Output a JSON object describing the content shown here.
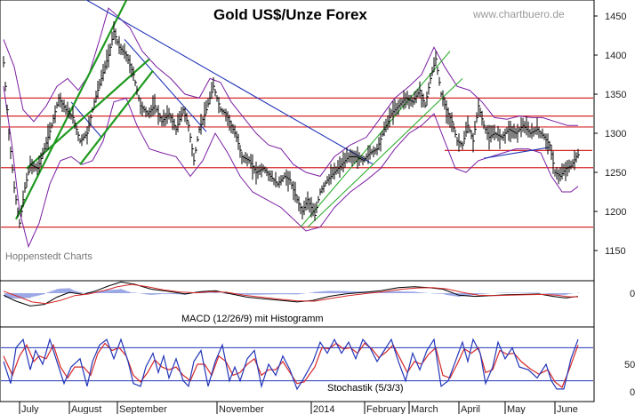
{
  "title": "Gold US$/Unze Forex",
  "watermark": "www.chartbuero.de",
  "source_label": "Hoppenstedt Charts",
  "macd_label": "MACD (12/26/9) mit Histogramm",
  "stoch_label": "Stochastik (5/3/3)",
  "colors": {
    "price": "#000000",
    "bollinger": "#7b1fa2",
    "support": "#d62828",
    "trend_down": "#2336b8",
    "trend_up_thick": "#1f9a1f",
    "trend_up_thin": "#2fae2f",
    "macd_signal": "#d62828",
    "histogram": "#5a6fd6",
    "stoch_k": "#2336b8",
    "stoch_d": "#d62828"
  },
  "chart_data": {
    "type": "candlestick",
    "x_months": [
      "July",
      "August",
      "September",
      "November",
      "2014",
      "February",
      "March",
      "April",
      "May",
      "June"
    ],
    "price_axis": {
      "ticks": [
        1150,
        1200,
        1250,
        1300,
        1350,
        1400,
        1450
      ],
      "ylim": [
        1130,
        1470
      ]
    },
    "macd_axis": {
      "ticks": [
        0
      ]
    },
    "stoch_axis": {
      "ticks": [
        0,
        50
      ]
    },
    "horizontal_levels": [
      1345,
      1322,
      1308,
      1256,
      1180
    ],
    "price_path": [
      [
        0,
        1390
      ],
      [
        6,
        1300
      ],
      [
        12,
        1230
      ],
      [
        18,
        1185
      ],
      [
        24,
        1230
      ],
      [
        30,
        1260
      ],
      [
        38,
        1255
      ],
      [
        46,
        1280
      ],
      [
        54,
        1310
      ],
      [
        62,
        1345
      ],
      [
        70,
        1330
      ],
      [
        78,
        1320
      ],
      [
        86,
        1290
      ],
      [
        94,
        1300
      ],
      [
        102,
        1340
      ],
      [
        110,
        1370
      ],
      [
        118,
        1400
      ],
      [
        124,
        1430
      ],
      [
        130,
        1410
      ],
      [
        138,
        1400
      ],
      [
        146,
        1375
      ],
      [
        154,
        1335
      ],
      [
        162,
        1325
      ],
      [
        170,
        1335
      ],
      [
        178,
        1315
      ],
      [
        186,
        1325
      ],
      [
        194,
        1305
      ],
      [
        202,
        1330
      ],
      [
        208,
        1310
      ],
      [
        214,
        1265
      ],
      [
        220,
        1305
      ],
      [
        228,
        1330
      ],
      [
        236,
        1360
      ],
      [
        244,
        1330
      ],
      [
        250,
        1325
      ],
      [
        256,
        1310
      ],
      [
        262,
        1295
      ],
      [
        268,
        1270
      ],
      [
        276,
        1265
      ],
      [
        284,
        1250
      ],
      [
        292,
        1255
      ],
      [
        300,
        1245
      ],
      [
        308,
        1235
      ],
      [
        316,
        1245
      ],
      [
        322,
        1240
      ],
      [
        330,
        1215
      ],
      [
        336,
        1200
      ],
      [
        342,
        1215
      ],
      [
        350,
        1195
      ],
      [
        356,
        1225
      ],
      [
        364,
        1240
      ],
      [
        372,
        1250
      ],
      [
        380,
        1260
      ],
      [
        388,
        1270
      ],
      [
        396,
        1270
      ],
      [
        404,
        1265
      ],
      [
        412,
        1275
      ],
      [
        420,
        1280
      ],
      [
        428,
        1305
      ],
      [
        436,
        1325
      ],
      [
        444,
        1335
      ],
      [
        452,
        1345
      ],
      [
        460,
        1340
      ],
      [
        468,
        1355
      ],
      [
        474,
        1335
      ],
      [
        480,
        1370
      ],
      [
        486,
        1395
      ],
      [
        492,
        1350
      ],
      [
        498,
        1330
      ],
      [
        504,
        1315
      ],
      [
        510,
        1290
      ],
      [
        516,
        1285
      ],
      [
        522,
        1310
      ],
      [
        528,
        1290
      ],
      [
        534,
        1335
      ],
      [
        540,
        1310
      ],
      [
        546,
        1295
      ],
      [
        552,
        1300
      ],
      [
        560,
        1295
      ],
      [
        568,
        1305
      ],
      [
        576,
        1300
      ],
      [
        584,
        1310
      ],
      [
        592,
        1300
      ],
      [
        600,
        1305
      ],
      [
        608,
        1295
      ],
      [
        614,
        1285
      ],
      [
        620,
        1250
      ],
      [
        626,
        1245
      ],
      [
        632,
        1255
      ],
      [
        638,
        1258
      ],
      [
        644,
        1270
      ],
      [
        648,
        1275
      ]
    ],
    "bollinger_upper": [
      [
        0,
        1420
      ],
      [
        12,
        1385
      ],
      [
        22,
        1330
      ],
      [
        34,
        1315
      ],
      [
        48,
        1335
      ],
      [
        60,
        1360
      ],
      [
        72,
        1370
      ],
      [
        84,
        1355
      ],
      [
        96,
        1375
      ],
      [
        108,
        1420
      ],
      [
        118,
        1460
      ],
      [
        128,
        1450
      ],
      [
        142,
        1435
      ],
      [
        156,
        1405
      ],
      [
        172,
        1385
      ],
      [
        188,
        1370
      ],
      [
        204,
        1350
      ],
      [
        220,
        1345
      ],
      [
        232,
        1370
      ],
      [
        244,
        1365
      ],
      [
        256,
        1340
      ],
      [
        270,
        1320
      ],
      [
        284,
        1300
      ],
      [
        298,
        1285
      ],
      [
        312,
        1280
      ],
      [
        326,
        1260
      ],
      [
        340,
        1250
      ],
      [
        356,
        1245
      ],
      [
        372,
        1270
      ],
      [
        390,
        1285
      ],
      [
        408,
        1295
      ],
      [
        424,
        1320
      ],
      [
        440,
        1345
      ],
      [
        456,
        1360
      ],
      [
        470,
        1375
      ],
      [
        484,
        1410
      ],
      [
        496,
        1385
      ],
      [
        510,
        1360
      ],
      [
        524,
        1355
      ],
      [
        538,
        1340
      ],
      [
        552,
        1320
      ],
      [
        566,
        1318
      ],
      [
        580,
        1322
      ],
      [
        594,
        1320
      ],
      [
        606,
        1320
      ],
      [
        620,
        1315
      ],
      [
        634,
        1310
      ],
      [
        646,
        1310
      ]
    ],
    "bollinger_lower": [
      [
        0,
        1360
      ],
      [
        10,
        1280
      ],
      [
        18,
        1200
      ],
      [
        28,
        1155
      ],
      [
        40,
        1185
      ],
      [
        52,
        1235
      ],
      [
        64,
        1265
      ],
      [
        76,
        1270
      ],
      [
        88,
        1260
      ],
      [
        100,
        1265
      ],
      [
        112,
        1290
      ],
      [
        124,
        1340
      ],
      [
        138,
        1345
      ],
      [
        150,
        1310
      ],
      [
        164,
        1280
      ],
      [
        178,
        1275
      ],
      [
        194,
        1270
      ],
      [
        210,
        1245
      ],
      [
        224,
        1265
      ],
      [
        238,
        1300
      ],
      [
        252,
        1275
      ],
      [
        266,
        1245
      ],
      [
        280,
        1225
      ],
      [
        296,
        1215
      ],
      [
        312,
        1205
      ],
      [
        326,
        1190
      ],
      [
        340,
        1175
      ],
      [
        356,
        1180
      ],
      [
        372,
        1205
      ],
      [
        390,
        1225
      ],
      [
        408,
        1240
      ],
      [
        424,
        1255
      ],
      [
        440,
        1280
      ],
      [
        456,
        1300
      ],
      [
        470,
        1310
      ],
      [
        484,
        1325
      ],
      [
        496,
        1290
      ],
      [
        508,
        1255
      ],
      [
        520,
        1250
      ],
      [
        534,
        1265
      ],
      [
        548,
        1270
      ],
      [
        562,
        1275
      ],
      [
        576,
        1280
      ],
      [
        590,
        1280
      ],
      [
        604,
        1275
      ],
      [
        616,
        1245
      ],
      [
        628,
        1225
      ],
      [
        638,
        1225
      ],
      [
        646,
        1232
      ]
    ],
    "macd": [
      [
        0,
        -5
      ],
      [
        14,
        -20
      ],
      [
        30,
        -32
      ],
      [
        46,
        -28
      ],
      [
        60,
        -10
      ],
      [
        74,
        2
      ],
      [
        90,
        -3
      ],
      [
        104,
        6
      ],
      [
        118,
        18
      ],
      [
        132,
        28
      ],
      [
        148,
        22
      ],
      [
        166,
        10
      ],
      [
        184,
        5
      ],
      [
        204,
        -2
      ],
      [
        222,
        4
      ],
      [
        238,
        6
      ],
      [
        256,
        -2
      ],
      [
        274,
        -10
      ],
      [
        292,
        -14
      ],
      [
        312,
        -18
      ],
      [
        330,
        -22
      ],
      [
        348,
        -18
      ],
      [
        366,
        -8
      ],
      [
        384,
        -2
      ],
      [
        404,
        2
      ],
      [
        424,
        6
      ],
      [
        444,
        14
      ],
      [
        462,
        16
      ],
      [
        478,
        14
      ],
      [
        494,
        10
      ],
      [
        512,
        -5
      ],
      [
        530,
        -8
      ],
      [
        548,
        -6
      ],
      [
        566,
        -4
      ],
      [
        584,
        -3
      ],
      [
        602,
        -2
      ],
      [
        618,
        -8
      ],
      [
        632,
        -12
      ],
      [
        646,
        -8
      ]
    ],
    "macd_signal": [
      [
        0,
        5
      ],
      [
        16,
        -8
      ],
      [
        32,
        -22
      ],
      [
        48,
        -26
      ],
      [
        64,
        -18
      ],
      [
        80,
        -6
      ],
      [
        96,
        -2
      ],
      [
        112,
        6
      ],
      [
        128,
        16
      ],
      [
        144,
        22
      ],
      [
        162,
        16
      ],
      [
        180,
        8
      ],
      [
        198,
        3
      ],
      [
        216,
        1
      ],
      [
        234,
        4
      ],
      [
        252,
        2
      ],
      [
        270,
        -5
      ],
      [
        290,
        -10
      ],
      [
        310,
        -15
      ],
      [
        330,
        -19
      ],
      [
        350,
        -20
      ],
      [
        368,
        -13
      ],
      [
        388,
        -6
      ],
      [
        408,
        -1
      ],
      [
        428,
        4
      ],
      [
        448,
        10
      ],
      [
        466,
        13
      ],
      [
        482,
        14
      ],
      [
        498,
        11
      ],
      [
        516,
        2
      ],
      [
        534,
        -5
      ],
      [
        552,
        -6
      ],
      [
        570,
        -5
      ],
      [
        588,
        -4
      ],
      [
        606,
        -3
      ],
      [
        622,
        -5
      ],
      [
        636,
        -9
      ],
      [
        646,
        -9
      ]
    ],
    "stoch_k": [
      [
        0,
        55
      ],
      [
        8,
        15
      ],
      [
        14,
        80
      ],
      [
        22,
        95
      ],
      [
        30,
        40
      ],
      [
        36,
        75
      ],
      [
        44,
        50
      ],
      [
        52,
        95
      ],
      [
        60,
        55
      ],
      [
        68,
        15
      ],
      [
        76,
        45
      ],
      [
        86,
        60
      ],
      [
        94,
        10
      ],
      [
        100,
        55
      ],
      [
        108,
        85
      ],
      [
        116,
        95
      ],
      [
        124,
        60
      ],
      [
        132,
        95
      ],
      [
        140,
        55
      ],
      [
        146,
        15
      ],
      [
        154,
        10
      ],
      [
        160,
        45
      ],
      [
        168,
        70
      ],
      [
        174,
        35
      ],
      [
        180,
        65
      ],
      [
        186,
        25
      ],
      [
        194,
        60
      ],
      [
        202,
        20
      ],
      [
        208,
        10
      ],
      [
        214,
        55
      ],
      [
        222,
        75
      ],
      [
        230,
        10
      ],
      [
        238,
        55
      ],
      [
        246,
        85
      ],
      [
        254,
        20
      ],
      [
        260,
        45
      ],
      [
        266,
        20
      ],
      [
        274,
        60
      ],
      [
        282,
        75
      ],
      [
        290,
        10
      ],
      [
        298,
        50
      ],
      [
        306,
        30
      ],
      [
        314,
        65
      ],
      [
        322,
        40
      ],
      [
        330,
        5
      ],
      [
        336,
        20
      ],
      [
        348,
        55
      ],
      [
        356,
        90
      ],
      [
        364,
        70
      ],
      [
        372,
        95
      ],
      [
        380,
        70
      ],
      [
        388,
        90
      ],
      [
        396,
        60
      ],
      [
        404,
        95
      ],
      [
        412,
        80
      ],
      [
        420,
        55
      ],
      [
        428,
        75
      ],
      [
        436,
        95
      ],
      [
        444,
        55
      ],
      [
        452,
        20
      ],
      [
        460,
        70
      ],
      [
        468,
        40
      ],
      [
        476,
        75
      ],
      [
        484,
        95
      ],
      [
        492,
        10
      ],
      [
        500,
        20
      ],
      [
        508,
        55
      ],
      [
        516,
        90
      ],
      [
        522,
        55
      ],
      [
        528,
        95
      ],
      [
        536,
        70
      ],
      [
        542,
        15
      ],
      [
        550,
        45
      ],
      [
        556,
        90
      ],
      [
        564,
        60
      ],
      [
        572,
        80
      ],
      [
        580,
        45
      ],
      [
        590,
        40
      ],
      [
        600,
        25
      ],
      [
        610,
        50
      ],
      [
        616,
        20
      ],
      [
        622,
        5
      ],
      [
        630,
        5
      ],
      [
        638,
        60
      ],
      [
        646,
        95
      ]
    ],
    "stoch_d": [
      [
        0,
        65
      ],
      [
        10,
        30
      ],
      [
        18,
        65
      ],
      [
        26,
        85
      ],
      [
        34,
        55
      ],
      [
        40,
        65
      ],
      [
        48,
        60
      ],
      [
        56,
        85
      ],
      [
        64,
        45
      ],
      [
        72,
        25
      ],
      [
        80,
        45
      ],
      [
        90,
        45
      ],
      [
        98,
        30
      ],
      [
        106,
        70
      ],
      [
        114,
        88
      ],
      [
        122,
        75
      ],
      [
        130,
        80
      ],
      [
        138,
        65
      ],
      [
        146,
        30
      ],
      [
        154,
        18
      ],
      [
        162,
        35
      ],
      [
        170,
        58
      ],
      [
        178,
        45
      ],
      [
        186,
        40
      ],
      [
        194,
        45
      ],
      [
        202,
        30
      ],
      [
        210,
        20
      ],
      [
        218,
        50
      ],
      [
        226,
        50
      ],
      [
        234,
        30
      ],
      [
        242,
        65
      ],
      [
        250,
        55
      ],
      [
        258,
        30
      ],
      [
        266,
        35
      ],
      [
        274,
        50
      ],
      [
        282,
        60
      ],
      [
        290,
        30
      ],
      [
        298,
        40
      ],
      [
        306,
        40
      ],
      [
        314,
        55
      ],
      [
        322,
        35
      ],
      [
        330,
        15
      ],
      [
        338,
        18
      ],
      [
        350,
        45
      ],
      [
        358,
        80
      ],
      [
        366,
        78
      ],
      [
        374,
        88
      ],
      [
        382,
        78
      ],
      [
        390,
        80
      ],
      [
        398,
        70
      ],
      [
        406,
        88
      ],
      [
        414,
        78
      ],
      [
        422,
        62
      ],
      [
        430,
        72
      ],
      [
        438,
        85
      ],
      [
        446,
        60
      ],
      [
        454,
        35
      ],
      [
        462,
        55
      ],
      [
        470,
        50
      ],
      [
        478,
        68
      ],
      [
        486,
        80
      ],
      [
        494,
        30
      ],
      [
        502,
        25
      ],
      [
        510,
        50
      ],
      [
        518,
        78
      ],
      [
        526,
        70
      ],
      [
        534,
        80
      ],
      [
        542,
        35
      ],
      [
        550,
        40
      ],
      [
        558,
        75
      ],
      [
        566,
        68
      ],
      [
        574,
        70
      ],
      [
        582,
        55
      ],
      [
        592,
        42
      ],
      [
        602,
        32
      ],
      [
        612,
        40
      ],
      [
        620,
        18
      ],
      [
        628,
        8
      ],
      [
        636,
        40
      ],
      [
        646,
        85
      ]
    ]
  }
}
